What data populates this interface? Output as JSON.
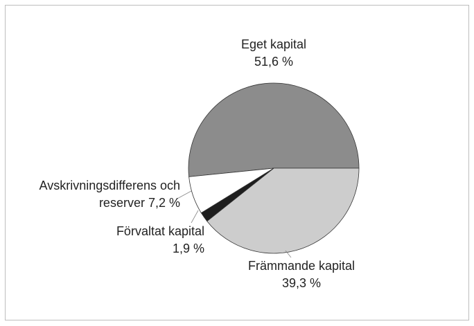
{
  "chart_data": {
    "type": "pie",
    "categories": [
      "Eget kapital",
      "Främmande kapital",
      "Förvaltat kapital",
      "Avskrivningsdifferens och reserver"
    ],
    "values": [
      51.6,
      39.3,
      1.9,
      7.2
    ],
    "value_labels": [
      "51,6 %",
      "39,3 %",
      "1,9 %",
      "7,2 %"
    ],
    "colors": [
      "#8c8c8c",
      "#cdcdcd",
      "#1e1e1e",
      "#ffffff"
    ]
  }
}
